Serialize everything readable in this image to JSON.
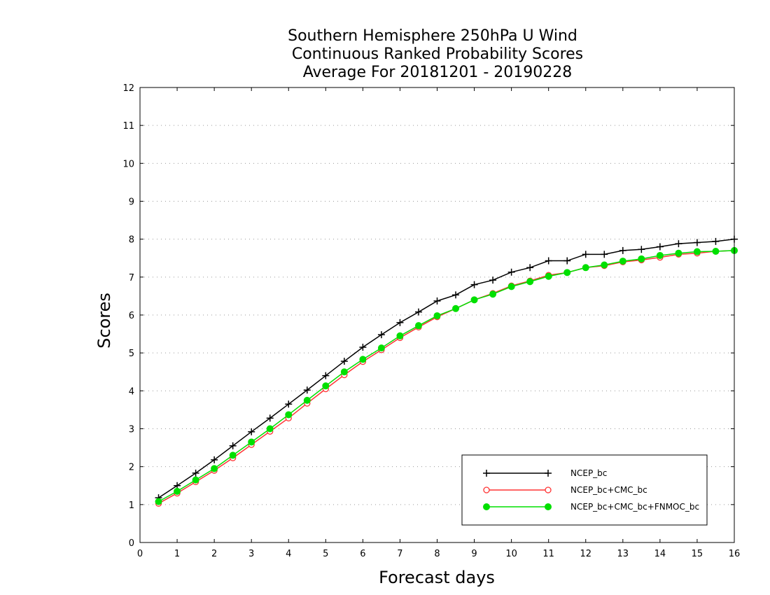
{
  "chart_data": {
    "type": "line",
    "title": [
      "Southern Hemisphere 250hPa U Wind",
      "Continuous Ranked Probability Scores",
      "Average For 20181201 - 20190228"
    ],
    "xlabel": "Forecast days",
    "ylabel": "Scores",
    "xlim": [
      0,
      16
    ],
    "ylim": [
      0,
      12
    ],
    "xticks": [
      "0",
      "1",
      "2",
      "3",
      "4",
      "5",
      "6",
      "7",
      "8",
      "9",
      "10",
      "11",
      "12",
      "13",
      "14",
      "15",
      "16"
    ],
    "yticks": [
      "0",
      "1",
      "2",
      "3",
      "4",
      "5",
      "6",
      "7",
      "8",
      "9",
      "10",
      "11",
      "12"
    ],
    "grid": true,
    "legend_position": "bottom-right",
    "x": [
      0.5,
      1,
      1.5,
      2,
      2.5,
      3,
      3.5,
      4,
      4.5,
      5,
      5.5,
      6,
      6.5,
      7,
      7.5,
      8,
      8.5,
      9,
      9.5,
      10,
      10.5,
      11,
      11.5,
      12,
      12.5,
      13,
      13.5,
      14,
      14.5,
      15,
      15.5,
      16
    ],
    "series": [
      {
        "name": "NCEP_bc",
        "color": "#000000",
        "marker": "plus",
        "values": [
          1.18,
          1.5,
          1.83,
          2.18,
          2.55,
          2.92,
          3.28,
          3.65,
          4.02,
          4.4,
          4.78,
          5.15,
          5.48,
          5.8,
          6.08,
          6.37,
          6.53,
          6.8,
          6.92,
          7.13,
          7.25,
          7.43,
          7.43,
          7.6,
          7.6,
          7.7,
          7.73,
          7.8,
          7.88,
          7.91,
          7.94,
          8.0
        ]
      },
      {
        "name": "NCEP_bc+CMC_bc",
        "color": "#ff3333",
        "marker": "open-circle",
        "values": [
          1.03,
          1.3,
          1.6,
          1.9,
          2.23,
          2.58,
          2.93,
          3.28,
          3.67,
          4.05,
          4.42,
          4.77,
          5.08,
          5.4,
          5.68,
          5.95,
          6.17,
          6.4,
          6.57,
          6.77,
          6.9,
          7.05,
          7.12,
          7.25,
          7.3,
          7.4,
          7.45,
          7.52,
          7.6,
          7.63,
          7.68,
          7.7
        ]
      },
      {
        "name": "NCEP_bc+CMC_bc+FNMOC_bc",
        "color": "#00e000",
        "marker": "filled-circle",
        "values": [
          1.08,
          1.35,
          1.65,
          1.95,
          2.3,
          2.65,
          3.0,
          3.37,
          3.75,
          4.13,
          4.5,
          4.83,
          5.13,
          5.45,
          5.72,
          5.98,
          6.17,
          6.4,
          6.55,
          6.75,
          6.88,
          7.02,
          7.12,
          7.25,
          7.32,
          7.42,
          7.48,
          7.57,
          7.63,
          7.67,
          7.68,
          7.7
        ]
      }
    ]
  }
}
